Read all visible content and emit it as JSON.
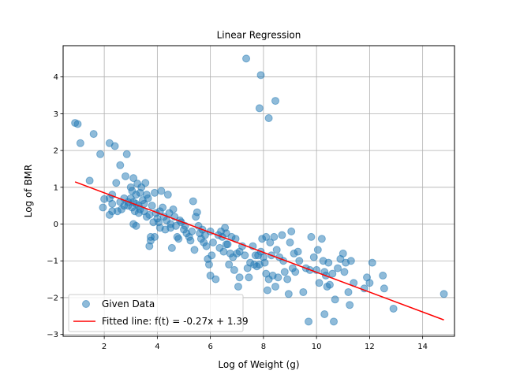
{
  "chart_data": {
    "type": "scatter",
    "title": "Linear Regression",
    "xlabel": "Log of Weight (g)",
    "ylabel": "Log of BMR",
    "xlim": [
      0.45,
      15.2
    ],
    "ylim": [
      -3.05,
      4.85
    ],
    "xticks": [
      2,
      4,
      6,
      8,
      10,
      12,
      14
    ],
    "yticks": [
      -3,
      -2,
      -1,
      0,
      1,
      2,
      3,
      4
    ],
    "grid": true,
    "legend_position": "lower-left",
    "colors": {
      "scatter": "#1f77b4",
      "line": "#ff0000",
      "grid": "#b0b0b0"
    },
    "series": [
      {
        "name": "Given Data",
        "kind": "scatter",
        "points": [
          [
            0.9,
            2.75
          ],
          [
            1.0,
            2.72
          ],
          [
            1.1,
            2.2
          ],
          [
            1.45,
            1.18
          ],
          [
            1.6,
            2.45
          ],
          [
            1.85,
            1.9
          ],
          [
            2.0,
            0.68
          ],
          [
            1.95,
            0.45
          ],
          [
            2.2,
            2.2
          ],
          [
            2.2,
            0.7
          ],
          [
            2.3,
            0.8
          ],
          [
            2.3,
            0.55
          ],
          [
            2.2,
            0.25
          ],
          [
            2.3,
            0.35
          ],
          [
            2.4,
            2.12
          ],
          [
            2.45,
            1.12
          ],
          [
            2.5,
            0.35
          ],
          [
            2.6,
            1.6
          ],
          [
            2.6,
            0.6
          ],
          [
            2.65,
            0.4
          ],
          [
            2.75,
            0.5
          ],
          [
            2.75,
            0.7
          ],
          [
            2.8,
            1.3
          ],
          [
            2.85,
            1.9
          ],
          [
            2.9,
            0.6
          ],
          [
            2.9,
            0.5
          ],
          [
            3.0,
            1.0
          ],
          [
            3.0,
            0.7
          ],
          [
            3.05,
            0.9
          ],
          [
            3.05,
            0.45
          ],
          [
            3.1,
            1.25
          ],
          [
            3.1,
            0.6
          ],
          [
            3.15,
            0.35
          ],
          [
            3.2,
            0.8
          ],
          [
            3.2,
            0.55
          ],
          [
            3.25,
            1.1
          ],
          [
            3.3,
            0.3
          ],
          [
            3.3,
            0.5
          ],
          [
            3.35,
            0.85
          ],
          [
            3.35,
            0.4
          ],
          [
            3.4,
            1.0
          ],
          [
            3.45,
            0.65
          ],
          [
            3.5,
            0.35
          ],
          [
            3.5,
            0.55
          ],
          [
            3.55,
            1.12
          ],
          [
            3.6,
            0.8
          ],
          [
            3.6,
            0.2
          ],
          [
            3.65,
            0.7
          ],
          [
            3.7,
            0.25
          ],
          [
            3.75,
            -0.35
          ],
          [
            3.75,
            -0.45
          ],
          [
            3.8,
            0.5
          ],
          [
            3.85,
            0.05
          ],
          [
            3.9,
            0.85
          ],
          [
            3.95,
            0.3
          ],
          [
            4.0,
            0.15
          ],
          [
            4.05,
            0.05
          ],
          [
            4.1,
            -0.1
          ],
          [
            4.1,
            0.35
          ],
          [
            4.15,
            0.9
          ],
          [
            4.2,
            0.45
          ],
          [
            4.25,
            0.2
          ],
          [
            4.3,
            -0.15
          ],
          [
            4.35,
            0.1
          ],
          [
            4.4,
            0.8
          ],
          [
            4.45,
            0.3
          ],
          [
            4.5,
            0.0
          ],
          [
            4.5,
            -0.1
          ],
          [
            4.55,
            -0.65
          ],
          [
            4.6,
            0.4
          ],
          [
            4.65,
            0.2
          ],
          [
            4.7,
            -0.05
          ],
          [
            3.1,
            0.0
          ],
          [
            3.2,
            -0.05
          ],
          [
            3.7,
            -0.6
          ],
          [
            3.9,
            -0.35
          ],
          [
            4.75,
            -0.35
          ],
          [
            4.8,
            -0.4
          ],
          [
            4.85,
            0.1
          ],
          [
            4.9,
            0.05
          ],
          [
            5.0,
            -0.15
          ],
          [
            5.05,
            -0.05
          ],
          [
            5.1,
            -0.25
          ],
          [
            5.2,
            -0.35
          ],
          [
            5.25,
            -0.45
          ],
          [
            5.3,
            -0.2
          ],
          [
            5.35,
            0.62
          ],
          [
            5.4,
            -0.7
          ],
          [
            5.45,
            0.2
          ],
          [
            5.5,
            0.32
          ],
          [
            5.55,
            -0.05
          ],
          [
            5.6,
            -0.25
          ],
          [
            5.65,
            -0.4
          ],
          [
            5.7,
            -0.15
          ],
          [
            5.8,
            -0.3
          ],
          [
            5.85,
            -0.6
          ],
          [
            5.9,
            -0.95
          ],
          [
            5.95,
            -1.1
          ],
          [
            6.0,
            -0.2
          ],
          [
            6.0,
            -1.4
          ],
          [
            6.1,
            -0.5
          ],
          [
            6.2,
            -1.5
          ],
          [
            6.3,
            -0.3
          ],
          [
            6.35,
            -0.65
          ],
          [
            6.4,
            -0.2
          ],
          [
            6.45,
            -0.35
          ],
          [
            6.5,
            -0.75
          ],
          [
            6.55,
            -0.1
          ],
          [
            6.6,
            -0.25
          ],
          [
            6.65,
            -0.55
          ],
          [
            6.7,
            -1.1
          ],
          [
            6.75,
            -0.8
          ],
          [
            6.8,
            -0.35
          ],
          [
            6.85,
            -0.9
          ],
          [
            6.9,
            -1.25
          ],
          [
            6.95,
            -0.4
          ],
          [
            7.0,
            -0.8
          ],
          [
            7.05,
            -1.7
          ],
          [
            7.1,
            -1.45
          ],
          [
            7.2,
            -0.6
          ],
          [
            7.3,
            -0.85
          ],
          [
            7.4,
            -1.2
          ],
          [
            7.45,
            -1.45
          ],
          [
            7.5,
            -1.05
          ],
          [
            7.6,
            -0.6
          ],
          [
            7.65,
            -1.1
          ],
          [
            7.7,
            -0.85
          ],
          [
            7.75,
            -1.15
          ],
          [
            7.8,
            -0.85
          ],
          [
            7.85,
            -1.1
          ],
          [
            7.9,
            -0.75
          ],
          [
            7.95,
            -0.4
          ],
          [
            8.0,
            -0.9
          ],
          [
            8.05,
            -1.05
          ],
          [
            8.1,
            -1.35
          ],
          [
            8.1,
            -0.35
          ],
          [
            8.15,
            -1.8
          ],
          [
            8.2,
            -1.5
          ],
          [
            8.25,
            -0.5
          ],
          [
            8.3,
            -0.85
          ],
          [
            8.35,
            -1.4
          ],
          [
            8.4,
            -0.35
          ],
          [
            8.45,
            -1.7
          ],
          [
            8.5,
            -0.7
          ],
          [
            8.55,
            -1.45
          ],
          [
            8.6,
            -0.9
          ],
          [
            8.7,
            -0.3
          ],
          [
            8.75,
            -1.0
          ],
          [
            8.8,
            -1.3
          ],
          [
            8.9,
            -1.5
          ],
          [
            8.95,
            -1.9
          ],
          [
            9.0,
            -0.5
          ],
          [
            9.05,
            -0.2
          ],
          [
            9.1,
            -1.2
          ],
          [
            9.15,
            -0.8
          ],
          [
            9.2,
            -1.3
          ],
          [
            9.3,
            -0.75
          ],
          [
            9.35,
            -1.0
          ],
          [
            9.5,
            -1.85
          ],
          [
            9.6,
            -1.2
          ],
          [
            9.7,
            -2.65
          ],
          [
            9.75,
            -1.25
          ],
          [
            9.8,
            -0.35
          ],
          [
            9.9,
            -0.9
          ],
          [
            10.0,
            -1.25
          ],
          [
            10.05,
            -0.7
          ],
          [
            10.1,
            -1.6
          ],
          [
            10.2,
            -0.4
          ],
          [
            10.25,
            -1.0
          ],
          [
            10.3,
            -1.3
          ],
          [
            10.35,
            -1.4
          ],
          [
            10.4,
            -1.7
          ],
          [
            10.45,
            -1.05
          ],
          [
            10.5,
            -1.65
          ],
          [
            10.6,
            -1.35
          ],
          [
            10.65,
            -2.65
          ],
          [
            10.7,
            -2.05
          ],
          [
            10.8,
            -1.2
          ],
          [
            10.9,
            -0.95
          ],
          [
            11.0,
            -0.8
          ],
          [
            11.05,
            -1.3
          ],
          [
            11.1,
            -1.05
          ],
          [
            11.2,
            -1.85
          ],
          [
            11.25,
            -2.2
          ],
          [
            11.3,
            -1.0
          ],
          [
            11.4,
            -1.6
          ],
          [
            11.8,
            -1.75
          ],
          [
            11.9,
            -1.45
          ],
          [
            12.0,
            -1.6
          ],
          [
            12.1,
            -1.05
          ],
          [
            12.5,
            -1.4
          ],
          [
            12.55,
            -1.75
          ],
          [
            12.9,
            -2.3
          ],
          [
            10.3,
            -2.45
          ],
          [
            14.8,
            -1.9
          ],
          [
            7.35,
            4.5
          ],
          [
            7.9,
            4.05
          ],
          [
            7.85,
            3.15
          ],
          [
            8.2,
            2.88
          ],
          [
            8.45,
            3.35
          ],
          [
            6.6,
            -0.55
          ],
          [
            7.1,
            -0.75
          ],
          [
            5.75,
            -0.5
          ],
          [
            6.05,
            -0.85
          ]
        ]
      },
      {
        "name": "Fitted line: f(t) = -0.27x + 1.39",
        "kind": "line",
        "slope": -0.27,
        "intercept": 1.39,
        "x_range": [
          0.9,
          14.8
        ]
      }
    ]
  }
}
